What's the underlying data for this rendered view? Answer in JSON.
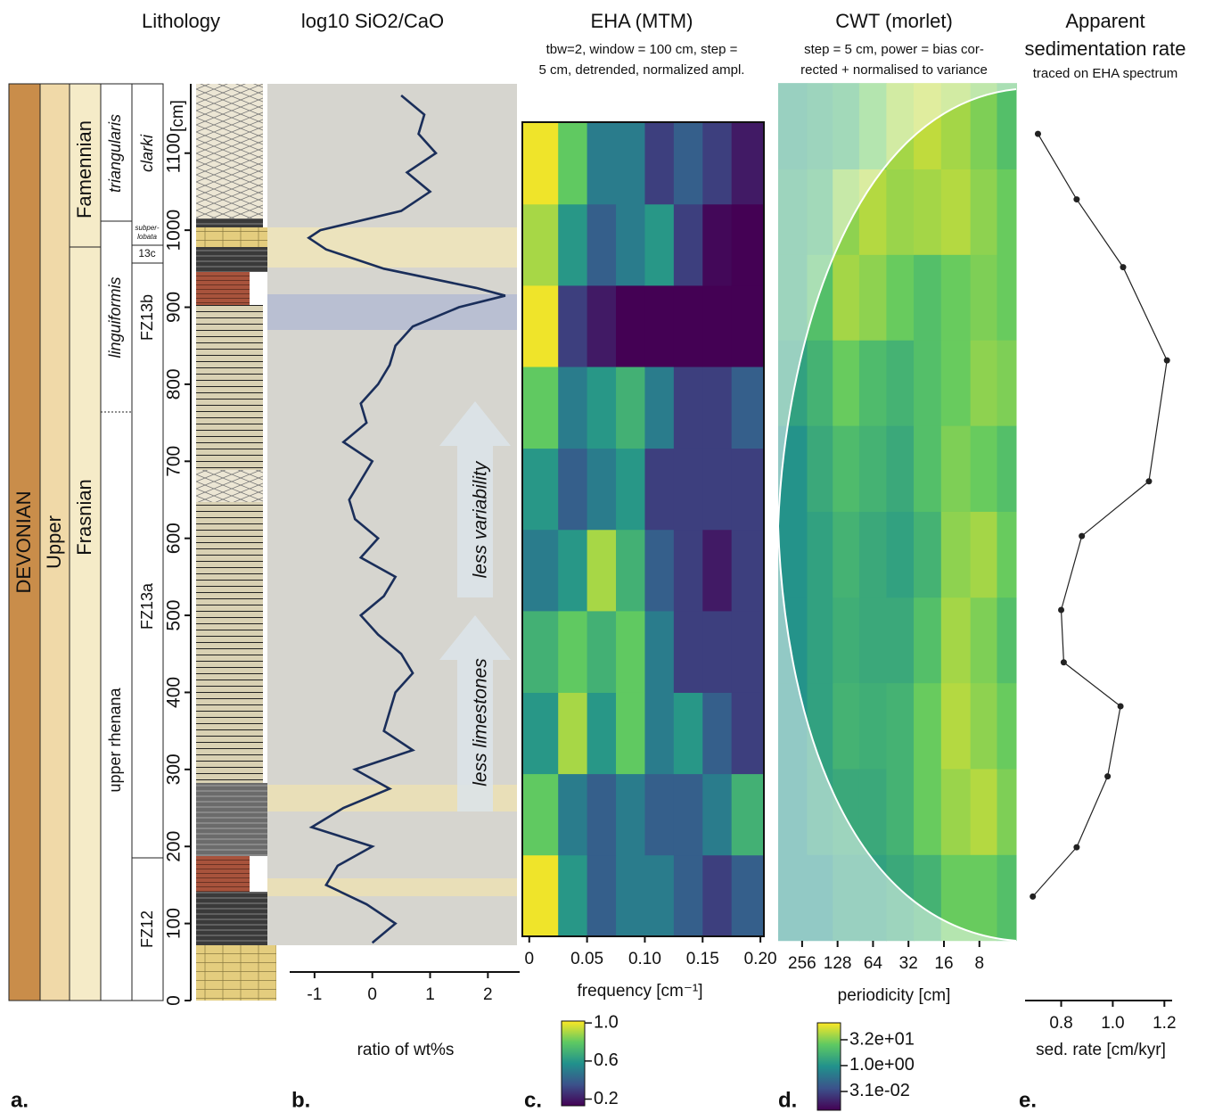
{
  "chart_data": [
    {
      "type": "stratigraphy",
      "title": "Lithology",
      "panel_label": "a.",
      "ylabel": "[cm]",
      "ylim": [
        0,
        1190
      ],
      "yticks": [
        0,
        100,
        200,
        300,
        400,
        500,
        600,
        700,
        800,
        900,
        1000,
        1100
      ],
      "system": "DEVONIAN",
      "series": "Upper",
      "stages": [
        "Famennian",
        "Frasnian"
      ],
      "zones": [
        "triangularis",
        "linguiformis",
        "upper rhenana"
      ],
      "subzones": [
        "clarki",
        "subper-",
        "lobata",
        "13c",
        "FZ13b",
        "FZ13a",
        "FZ12"
      ]
    },
    {
      "type": "line",
      "title": "log10 SiO2/CaO",
      "panel_label": "b.",
      "xlabel": "ratio of wt%s",
      "color": "#1a2e5a",
      "xlim": [
        -1.43,
        2.55
      ],
      "xticks": [
        -1,
        0,
        1,
        2
      ],
      "ylim": [
        0,
        1190
      ],
      "depth": [
        75,
        100,
        125,
        150,
        175,
        200,
        225,
        250,
        275,
        300,
        325,
        350,
        375,
        400,
        425,
        450,
        475,
        500,
        525,
        550,
        575,
        600,
        625,
        650,
        675,
        700,
        725,
        750,
        775,
        800,
        825,
        850,
        875,
        900,
        915,
        925,
        950,
        975,
        990,
        1000,
        1025,
        1050,
        1075,
        1100,
        1125,
        1150,
        1175
      ],
      "values": [
        0.0,
        0.4,
        -0.1,
        -0.8,
        -0.6,
        0.0,
        -1.05,
        -0.5,
        0.3,
        -0.3,
        0.7,
        0.2,
        0.3,
        0.4,
        0.7,
        0.5,
        0.1,
        -0.2,
        0.2,
        0.4,
        -0.2,
        0.1,
        -0.3,
        -0.4,
        -0.2,
        0.0,
        -0.5,
        -0.1,
        -0.2,
        0.1,
        0.3,
        0.4,
        0.7,
        1.5,
        2.3,
        1.8,
        0.2,
        -0.8,
        -1.1,
        -0.9,
        0.5,
        1.0,
        0.6,
        1.1,
        0.8,
        0.9,
        0.5
      ],
      "annotations": [
        "less variability",
        "less limestones"
      ]
    },
    {
      "type": "heatmap",
      "title": "EHA (MTM)",
      "panel_label": "c.",
      "subtitle": [
        "tbw=2, window = 100 cm, step =",
        "5 cm, detrended, normalized ampl."
      ],
      "xlabel": "frequency [cm⁻¹]",
      "xlim": [
        -0.006,
        0.203
      ],
      "xticks": [
        0,
        0.05,
        {
          "value": 0.1,
          "label": "0.10"
        },
        0.15,
        {
          "value": 0.2,
          "label": "0.20"
        }
      ],
      "ylim": [
        83,
        1140
      ],
      "x": [
        0.0125,
        0.0375,
        0.0625,
        0.0875,
        0.1125,
        0.1375,
        0.1625,
        0.1875
      ],
      "y": [
        136,
        242,
        347,
        453,
        559,
        664,
        770,
        876,
        981,
        1087
      ],
      "z": [
        [
          1.0,
          0.6,
          0.4,
          0.5,
          0.5,
          0.4,
          0.3,
          0.4
        ],
        [
          0.8,
          0.5,
          0.4,
          0.5,
          0.4,
          0.4,
          0.5,
          0.7
        ],
        [
          0.6,
          0.9,
          0.6,
          0.8,
          0.5,
          0.6,
          0.4,
          0.3
        ],
        [
          0.7,
          0.8,
          0.7,
          0.8,
          0.5,
          0.3,
          0.3,
          0.3
        ],
        [
          0.5,
          0.6,
          0.9,
          0.7,
          0.4,
          0.3,
          0.2,
          0.3
        ],
        [
          0.6,
          0.4,
          0.5,
          0.6,
          0.3,
          0.3,
          0.3,
          0.3
        ],
        [
          0.8,
          0.5,
          0.6,
          0.7,
          0.5,
          0.3,
          0.3,
          0.4
        ],
        [
          1.0,
          0.3,
          0.2,
          0.1,
          0.1,
          0.1,
          0.1,
          0.1
        ],
        [
          0.9,
          0.6,
          0.4,
          0.5,
          0.6,
          0.3,
          0.15,
          0.1
        ],
        [
          1.0,
          0.8,
          0.5,
          0.5,
          0.3,
          0.4,
          0.3,
          0.2
        ]
      ],
      "colorbar": {
        "clim": [
          0.13,
          1.02
        ],
        "log": false,
        "ticks": [
          0.2,
          0.6,
          {
            "value": 1,
            "label": "1.0"
          }
        ]
      }
    },
    {
      "type": "heatmap",
      "title": "CWT (morlet)",
      "panel_label": "d.",
      "subtitle": [
        "step = 5 cm, power = bias cor-",
        "rected + normalised to variance"
      ],
      "xlabel": "periodicity [cm]",
      "xlog": true,
      "xlim": [
        409,
        3.9
      ],
      "xticks": [
        256,
        128,
        64,
        32,
        16,
        8
      ],
      "ylim": [
        78,
        1191
      ],
      "x": [
        300,
        180,
        110,
        64,
        38,
        22,
        13,
        7,
        4.6
      ],
      "y": [
        134,
        245,
        357,
        468,
        579,
        691,
        802,
        913,
        1024,
        1135
      ],
      "z": [
        [
          1,
          1,
          2,
          2,
          3,
          5,
          20,
          20,
          10
        ],
        [
          1,
          2,
          3,
          3,
          5,
          20,
          50,
          80,
          30
        ],
        [
          1,
          2,
          5,
          4,
          5,
          20,
          80,
          40,
          20
        ],
        [
          1,
          2,
          4,
          3,
          3,
          10,
          60,
          30,
          10
        ],
        [
          1,
          2,
          5,
          3,
          2,
          5,
          40,
          60,
          20
        ],
        [
          1,
          3,
          8,
          5,
          3,
          10,
          30,
          20,
          10
        ],
        [
          2,
          5,
          20,
          8,
          5,
          10,
          20,
          40,
          30
        ],
        [
          3,
          10,
          60,
          40,
          20,
          10,
          20,
          30,
          20
        ],
        [
          3,
          5,
          40,
          80,
          50,
          60,
          80,
          40,
          20
        ],
        [
          2,
          3,
          5,
          20,
          60,
          100,
          60,
          30,
          10
        ]
      ],
      "colorbar": {
        "clim": [
          0.0025,
          310
        ],
        "log": true,
        "ticks": [
          {
            "value": 32,
            "label": "3.2e+01"
          },
          {
            "value": 1,
            "label": "1.0e+00"
          },
          {
            "value": 0.031,
            "label": "3.1e-02"
          }
        ]
      }
    },
    {
      "type": "line",
      "title": [
        "Apparent",
        "sedimentation rate"
      ],
      "subtitle": "traced on EHA spectrum",
      "panel_label": "e.",
      "xlabel": "sed. rate [cm/kyr]",
      "color": "#222",
      "markers": true,
      "xlim": [
        0.66,
        1.23
      ],
      "xticks": [
        0.8,
        {
          "value": 1,
          "label": "1.0"
        },
        1.2
      ],
      "ylim": [
        0,
        1190
      ],
      "depth": [
        135,
        199,
        291,
        382,
        439,
        507,
        603,
        674,
        831,
        952,
        1040,
        1125
      ],
      "values": [
        0.69,
        0.86,
        0.98,
        1.03,
        0.81,
        0.8,
        0.88,
        1.14,
        1.21,
        1.04,
        0.86,
        0.71
      ]
    }
  ]
}
